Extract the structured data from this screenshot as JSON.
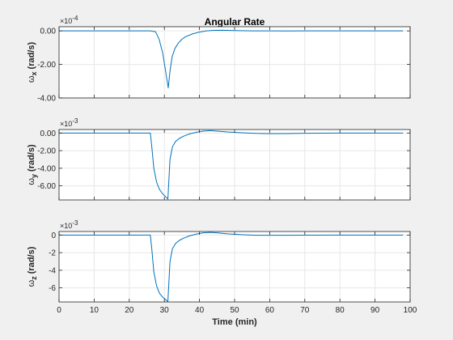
{
  "figure": {
    "title": "Angular Rate",
    "xlabel": "Time (min)",
    "background": "#f0f0f0",
    "axes_background": "#ffffff",
    "line_color": "#0072bd",
    "grid_color": "#e6e6e6",
    "axes_color": "#262626"
  },
  "chart_data": [
    {
      "type": "line",
      "title": "Angular Rate",
      "ylabel_symbol": "ω",
      "ylabel_sub": "x",
      "ylabel_unit": "(rad/s)",
      "exponent_label": "×10",
      "exponent_power": "-4",
      "xlim": [
        0,
        100
      ],
      "ylim": [
        -4.0,
        0.25
      ],
      "yticks": [
        0,
        -2,
        -4
      ],
      "yticklabels": [
        "0.00",
        "-2.00",
        "-4.00"
      ],
      "xticks": [
        0,
        10,
        20,
        30,
        40,
        50,
        60,
        70,
        80,
        90,
        100
      ],
      "xticklabels": [],
      "grid": true,
      "series": [
        {
          "x": [
            0,
            26,
            27.5,
            28.5,
            29.5,
            30.2,
            30.8,
            31.1,
            31.6,
            32.2,
            33,
            34,
            35,
            36,
            38,
            40,
            42,
            44,
            46,
            48,
            50,
            55,
            60,
            65,
            70,
            80,
            90,
            98
          ],
          "values": [
            0,
            0,
            -0.05,
            -0.5,
            -1.3,
            -2.2,
            -3.0,
            -3.4,
            -2.4,
            -1.55,
            -1.05,
            -0.72,
            -0.5,
            -0.35,
            -0.18,
            -0.07,
            0.0,
            0.03,
            0.04,
            0.035,
            0.02,
            0.005,
            0,
            -0.005,
            0,
            0,
            0,
            0
          ]
        }
      ]
    },
    {
      "type": "line",
      "ylabel_symbol": "ω",
      "ylabel_sub": "y",
      "ylabel_unit": "(rad/s)",
      "exponent_label": "×10",
      "exponent_power": "-3",
      "xlim": [
        0,
        100
      ],
      "ylim": [
        -7.6,
        0.4
      ],
      "yticks": [
        0,
        -2,
        -4,
        -6
      ],
      "yticklabels": [
        "0.00",
        "-2.00",
        "-4.00",
        "-6.00"
      ],
      "xticks": [
        0,
        10,
        20,
        30,
        40,
        50,
        60,
        70,
        80,
        90,
        100
      ],
      "xticklabels": [],
      "grid": true,
      "series": [
        {
          "x": [
            0,
            26,
            26.4,
            27,
            27.8,
            28.6,
            29.5,
            30.4,
            31.0,
            31.6,
            32.3,
            33.2,
            34.3,
            35.5,
            37,
            39,
            41,
            43,
            45,
            48,
            52,
            56,
            60,
            65,
            70,
            80,
            90,
            98
          ],
          "values": [
            0,
            0,
            -1.5,
            -4.0,
            -5.6,
            -6.4,
            -6.9,
            -7.25,
            -7.5,
            -3.0,
            -1.55,
            -0.95,
            -0.6,
            -0.35,
            -0.12,
            0.08,
            0.22,
            0.27,
            0.22,
            0.12,
            0.03,
            -0.04,
            -0.07,
            -0.06,
            -0.03,
            0,
            0,
            0
          ]
        }
      ]
    },
    {
      "type": "line",
      "ylabel_symbol": "ω",
      "ylabel_sub": "z",
      "ylabel_unit": "(rad/s)",
      "exponent_label": "×10",
      "exponent_power": "-3",
      "xlim": [
        0,
        100
      ],
      "ylim": [
        -7.6,
        0.4
      ],
      "yticks": [
        0,
        -2,
        -4,
        -6
      ],
      "yticklabels": [
        "0",
        "-2",
        "-4",
        "-6"
      ],
      "xticks": [
        0,
        10,
        20,
        30,
        40,
        50,
        60,
        70,
        80,
        90,
        100
      ],
      "xticklabels": [
        "0",
        "10",
        "20",
        "30",
        "40",
        "50",
        "60",
        "70",
        "80",
        "90",
        "100"
      ],
      "xlabel": "Time (min)",
      "grid": true,
      "series": [
        {
          "x": [
            0,
            26,
            26.4,
            27,
            27.8,
            28.6,
            29.5,
            30.4,
            31.0,
            31.6,
            32.3,
            33.2,
            34.3,
            35.5,
            37,
            39,
            41,
            43,
            45,
            48,
            52,
            56,
            60,
            65,
            70,
            80,
            90,
            98
          ],
          "values": [
            0,
            0,
            -1.5,
            -4.2,
            -5.8,
            -6.6,
            -7.05,
            -7.35,
            -7.55,
            -3.0,
            -1.55,
            -0.95,
            -0.6,
            -0.35,
            -0.12,
            0.1,
            0.25,
            0.3,
            0.25,
            0.14,
            0.04,
            -0.02,
            -0.03,
            -0.02,
            -0.01,
            0,
            0,
            0
          ]
        }
      ]
    }
  ]
}
